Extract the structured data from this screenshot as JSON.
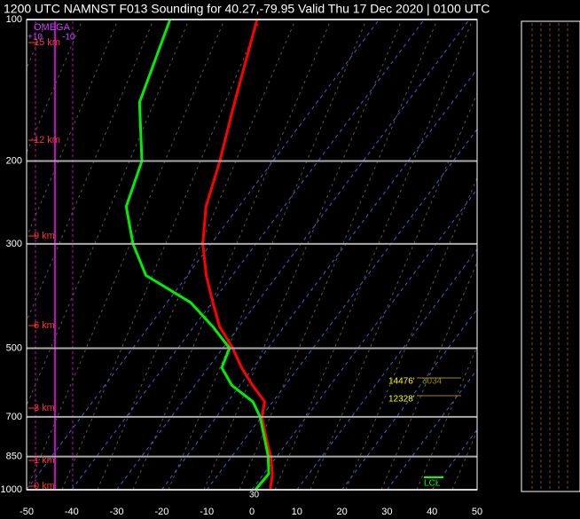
{
  "chart_data": {
    "type": "skewt",
    "title": "1200 UTC NAMNST F013 Sounding for 40.27,-79.95 Valid  Thu 17 Dec 2020 | 0100 UTC",
    "ylim": [
      1000,
      100
    ],
    "yticks": [
      100,
      200,
      300,
      500,
      700,
      850,
      1000
    ],
    "log_y": true,
    "xlim": [
      -50,
      50
    ],
    "xticks": [
      -50,
      -40,
      -30,
      -20,
      -10,
      0,
      10,
      20,
      30,
      40,
      50
    ],
    "grid": true,
    "levels": [
      1000,
      925,
      850,
      800,
      700,
      650,
      600,
      550,
      500,
      450,
      400,
      350,
      300,
      250,
      200,
      150,
      100
    ],
    "series": [
      {
        "color": "#ff0000",
        "values": [
          4.1,
          1.9,
          -1.3,
          -4.1,
          -9.9,
          -11.8,
          -17.2,
          -22.6,
          -27.8,
          -34.3,
          -39.8,
          -45.8,
          -51.8,
          -57.3,
          -61.8,
          -68.3,
          -77.1
        ]
      },
      {
        "color": "#00ee00",
        "values": [
          0.8,
          1.1,
          -1.9,
          -4.5,
          -10.3,
          -14.4,
          -21.8,
          -27,
          -28.5,
          -35.8,
          -44.7,
          -59.2,
          -67.3,
          -75,
          -79.1,
          -89.4,
          -96.4
        ]
      }
    ],
    "height_labels": [
      "15 km",
      "12 km",
      "9 km",
      "6 km",
      "3 km",
      "1 km",
      "0 km"
    ],
    "omega_label": "OMEGA",
    "omega_ticks": [
      "+10",
      "-10"
    ],
    "annotations": [
      "14476'",
      "3034",
      "12328'",
      "LCL",
      "30"
    ]
  }
}
